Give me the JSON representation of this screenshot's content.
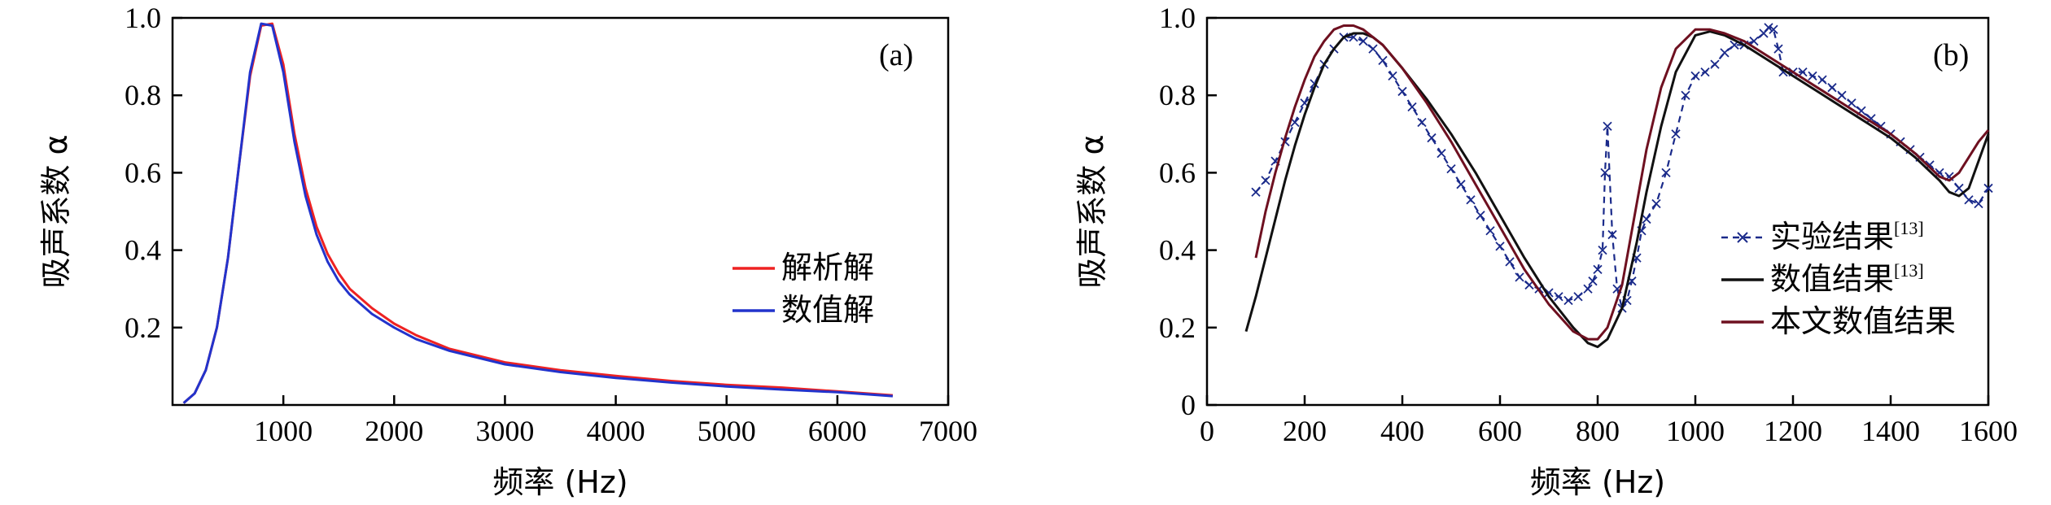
{
  "chart_data": [
    {
      "type": "line",
      "panel_label": "(a)",
      "xlabel": "频率 (Hz)",
      "ylabel": "吸声系数 α",
      "xlim": [
        0,
        7000
      ],
      "ylim": [
        0,
        1.0
      ],
      "x_ticks": [
        "1000",
        "2000",
        "3000",
        "4000",
        "5000",
        "6000",
        "7000"
      ],
      "y_ticks": [
        "0.2",
        "0.4",
        "0.6",
        "0.8",
        "1.0"
      ],
      "legend_position": "right",
      "series": [
        {
          "name": "解析解",
          "color": "#ee2222",
          "x": [
            100,
            200,
            300,
            400,
            500,
            600,
            700,
            800,
            900,
            1000,
            1100,
            1200,
            1300,
            1400,
            1500,
            1600,
            1800,
            2000,
            2200,
            2500,
            3000,
            3500,
            4000,
            4500,
            5000,
            5500,
            6000,
            6500
          ],
          "y": [
            0.005,
            0.03,
            0.09,
            0.2,
            0.38,
            0.62,
            0.85,
            0.98,
            0.985,
            0.88,
            0.7,
            0.56,
            0.46,
            0.39,
            0.34,
            0.3,
            0.25,
            0.21,
            0.18,
            0.145,
            0.11,
            0.09,
            0.075,
            0.062,
            0.052,
            0.045,
            0.035,
            0.025
          ]
        },
        {
          "name": "数值解",
          "color": "#2233cc",
          "x": [
            100,
            200,
            300,
            400,
            500,
            600,
            700,
            800,
            900,
            1000,
            1100,
            1200,
            1300,
            1400,
            1500,
            1600,
            1800,
            2000,
            2200,
            2500,
            3000,
            3500,
            4000,
            4500,
            5000,
            5500,
            6000,
            6500
          ],
          "y": [
            0.005,
            0.03,
            0.09,
            0.2,
            0.38,
            0.62,
            0.86,
            0.985,
            0.98,
            0.86,
            0.68,
            0.54,
            0.44,
            0.37,
            0.32,
            0.285,
            0.235,
            0.2,
            0.17,
            0.14,
            0.105,
            0.085,
            0.07,
            0.058,
            0.048,
            0.04,
            0.033,
            0.023
          ]
        }
      ]
    },
    {
      "type": "line",
      "panel_label": "(b)",
      "xlabel": "频率 (Hz)",
      "ylabel": "吸声系数 α",
      "xlim": [
        0,
        1600
      ],
      "ylim": [
        0,
        1.0
      ],
      "x_ticks": [
        "0",
        "200",
        "400",
        "600",
        "800",
        "1000",
        "1200",
        "1400",
        "1600"
      ],
      "y_ticks": [
        "0",
        "0.2",
        "0.4",
        "0.6",
        "0.8",
        "1.0"
      ],
      "legend_position": "bottom-right",
      "series": [
        {
          "name": "实验结果",
          "name_sup": "[13]",
          "color": "#1a2a8a",
          "style": "dashed-x",
          "x": [
            100,
            120,
            140,
            160,
            180,
            200,
            220,
            240,
            260,
            280,
            300,
            320,
            340,
            360,
            380,
            400,
            420,
            440,
            460,
            480,
            500,
            520,
            540,
            560,
            580,
            600,
            620,
            640,
            660,
            680,
            700,
            720,
            740,
            760,
            780,
            790,
            800,
            810,
            815,
            820,
            830,
            840,
            850,
            860,
            870,
            880,
            890,
            900,
            920,
            940,
            960,
            980,
            1000,
            1020,
            1040,
            1060,
            1080,
            1100,
            1120,
            1140,
            1150,
            1160,
            1170,
            1180,
            1200,
            1220,
            1240,
            1260,
            1280,
            1300,
            1320,
            1340,
            1360,
            1380,
            1400,
            1420,
            1440,
            1460,
            1480,
            1500,
            1520,
            1540,
            1560,
            1580,
            1600
          ],
          "y": [
            0.55,
            0.58,
            0.63,
            0.68,
            0.73,
            0.78,
            0.83,
            0.88,
            0.92,
            0.95,
            0.95,
            0.94,
            0.92,
            0.89,
            0.85,
            0.81,
            0.77,
            0.73,
            0.69,
            0.65,
            0.61,
            0.57,
            0.53,
            0.49,
            0.45,
            0.41,
            0.37,
            0.33,
            0.31,
            0.3,
            0.29,
            0.28,
            0.27,
            0.28,
            0.3,
            0.32,
            0.35,
            0.4,
            0.6,
            0.72,
            0.44,
            0.3,
            0.25,
            0.27,
            0.32,
            0.38,
            0.45,
            0.48,
            0.52,
            0.6,
            0.7,
            0.8,
            0.85,
            0.86,
            0.88,
            0.91,
            0.93,
            0.93,
            0.94,
            0.96,
            0.975,
            0.97,
            0.92,
            0.86,
            0.86,
            0.86,
            0.85,
            0.84,
            0.82,
            0.8,
            0.78,
            0.76,
            0.74,
            0.72,
            0.7,
            0.68,
            0.66,
            0.64,
            0.62,
            0.6,
            0.59,
            0.56,
            0.53,
            0.52,
            0.56
          ]
        },
        {
          "name": "数值结果",
          "name_sup": "[13]",
          "color": "#111111",
          "style": "solid",
          "x": [
            80,
            100,
            120,
            140,
            160,
            180,
            200,
            220,
            240,
            260,
            280,
            300,
            320,
            340,
            360,
            400,
            450,
            500,
            550,
            600,
            650,
            700,
            750,
            780,
            800,
            820,
            850,
            880,
            900,
            930,
            960,
            1000,
            1030,
            1060,
            1100,
            1150,
            1200,
            1250,
            1300,
            1350,
            1400,
            1450,
            1500,
            1520,
            1540,
            1560,
            1580,
            1600
          ],
          "y": [
            0.19,
            0.28,
            0.38,
            0.48,
            0.58,
            0.67,
            0.75,
            0.82,
            0.88,
            0.92,
            0.95,
            0.96,
            0.96,
            0.95,
            0.93,
            0.87,
            0.79,
            0.7,
            0.6,
            0.49,
            0.38,
            0.28,
            0.2,
            0.16,
            0.15,
            0.17,
            0.25,
            0.42,
            0.55,
            0.72,
            0.86,
            0.955,
            0.965,
            0.955,
            0.93,
            0.89,
            0.85,
            0.81,
            0.77,
            0.73,
            0.69,
            0.64,
            0.58,
            0.55,
            0.54,
            0.56,
            0.63,
            0.7
          ]
        },
        {
          "name": "本文数值结果",
          "color": "#6e1020",
          "style": "solid",
          "x": [
            100,
            120,
            140,
            160,
            180,
            200,
            220,
            240,
            260,
            280,
            300,
            320,
            340,
            360,
            400,
            450,
            500,
            550,
            600,
            650,
            700,
            750,
            780,
            800,
            820,
            850,
            880,
            900,
            930,
            960,
            1000,
            1030,
            1060,
            1100,
            1150,
            1200,
            1250,
            1300,
            1350,
            1400,
            1450,
            1500,
            1520,
            1540,
            1560,
            1580,
            1600
          ],
          "y": [
            0.38,
            0.5,
            0.6,
            0.69,
            0.77,
            0.84,
            0.9,
            0.94,
            0.97,
            0.98,
            0.98,
            0.97,
            0.95,
            0.93,
            0.87,
            0.78,
            0.68,
            0.57,
            0.46,
            0.35,
            0.26,
            0.19,
            0.17,
            0.17,
            0.2,
            0.31,
            0.52,
            0.66,
            0.82,
            0.92,
            0.97,
            0.97,
            0.96,
            0.94,
            0.9,
            0.86,
            0.82,
            0.78,
            0.74,
            0.7,
            0.65,
            0.59,
            0.58,
            0.6,
            0.64,
            0.68,
            0.71
          ]
        }
      ]
    }
  ]
}
